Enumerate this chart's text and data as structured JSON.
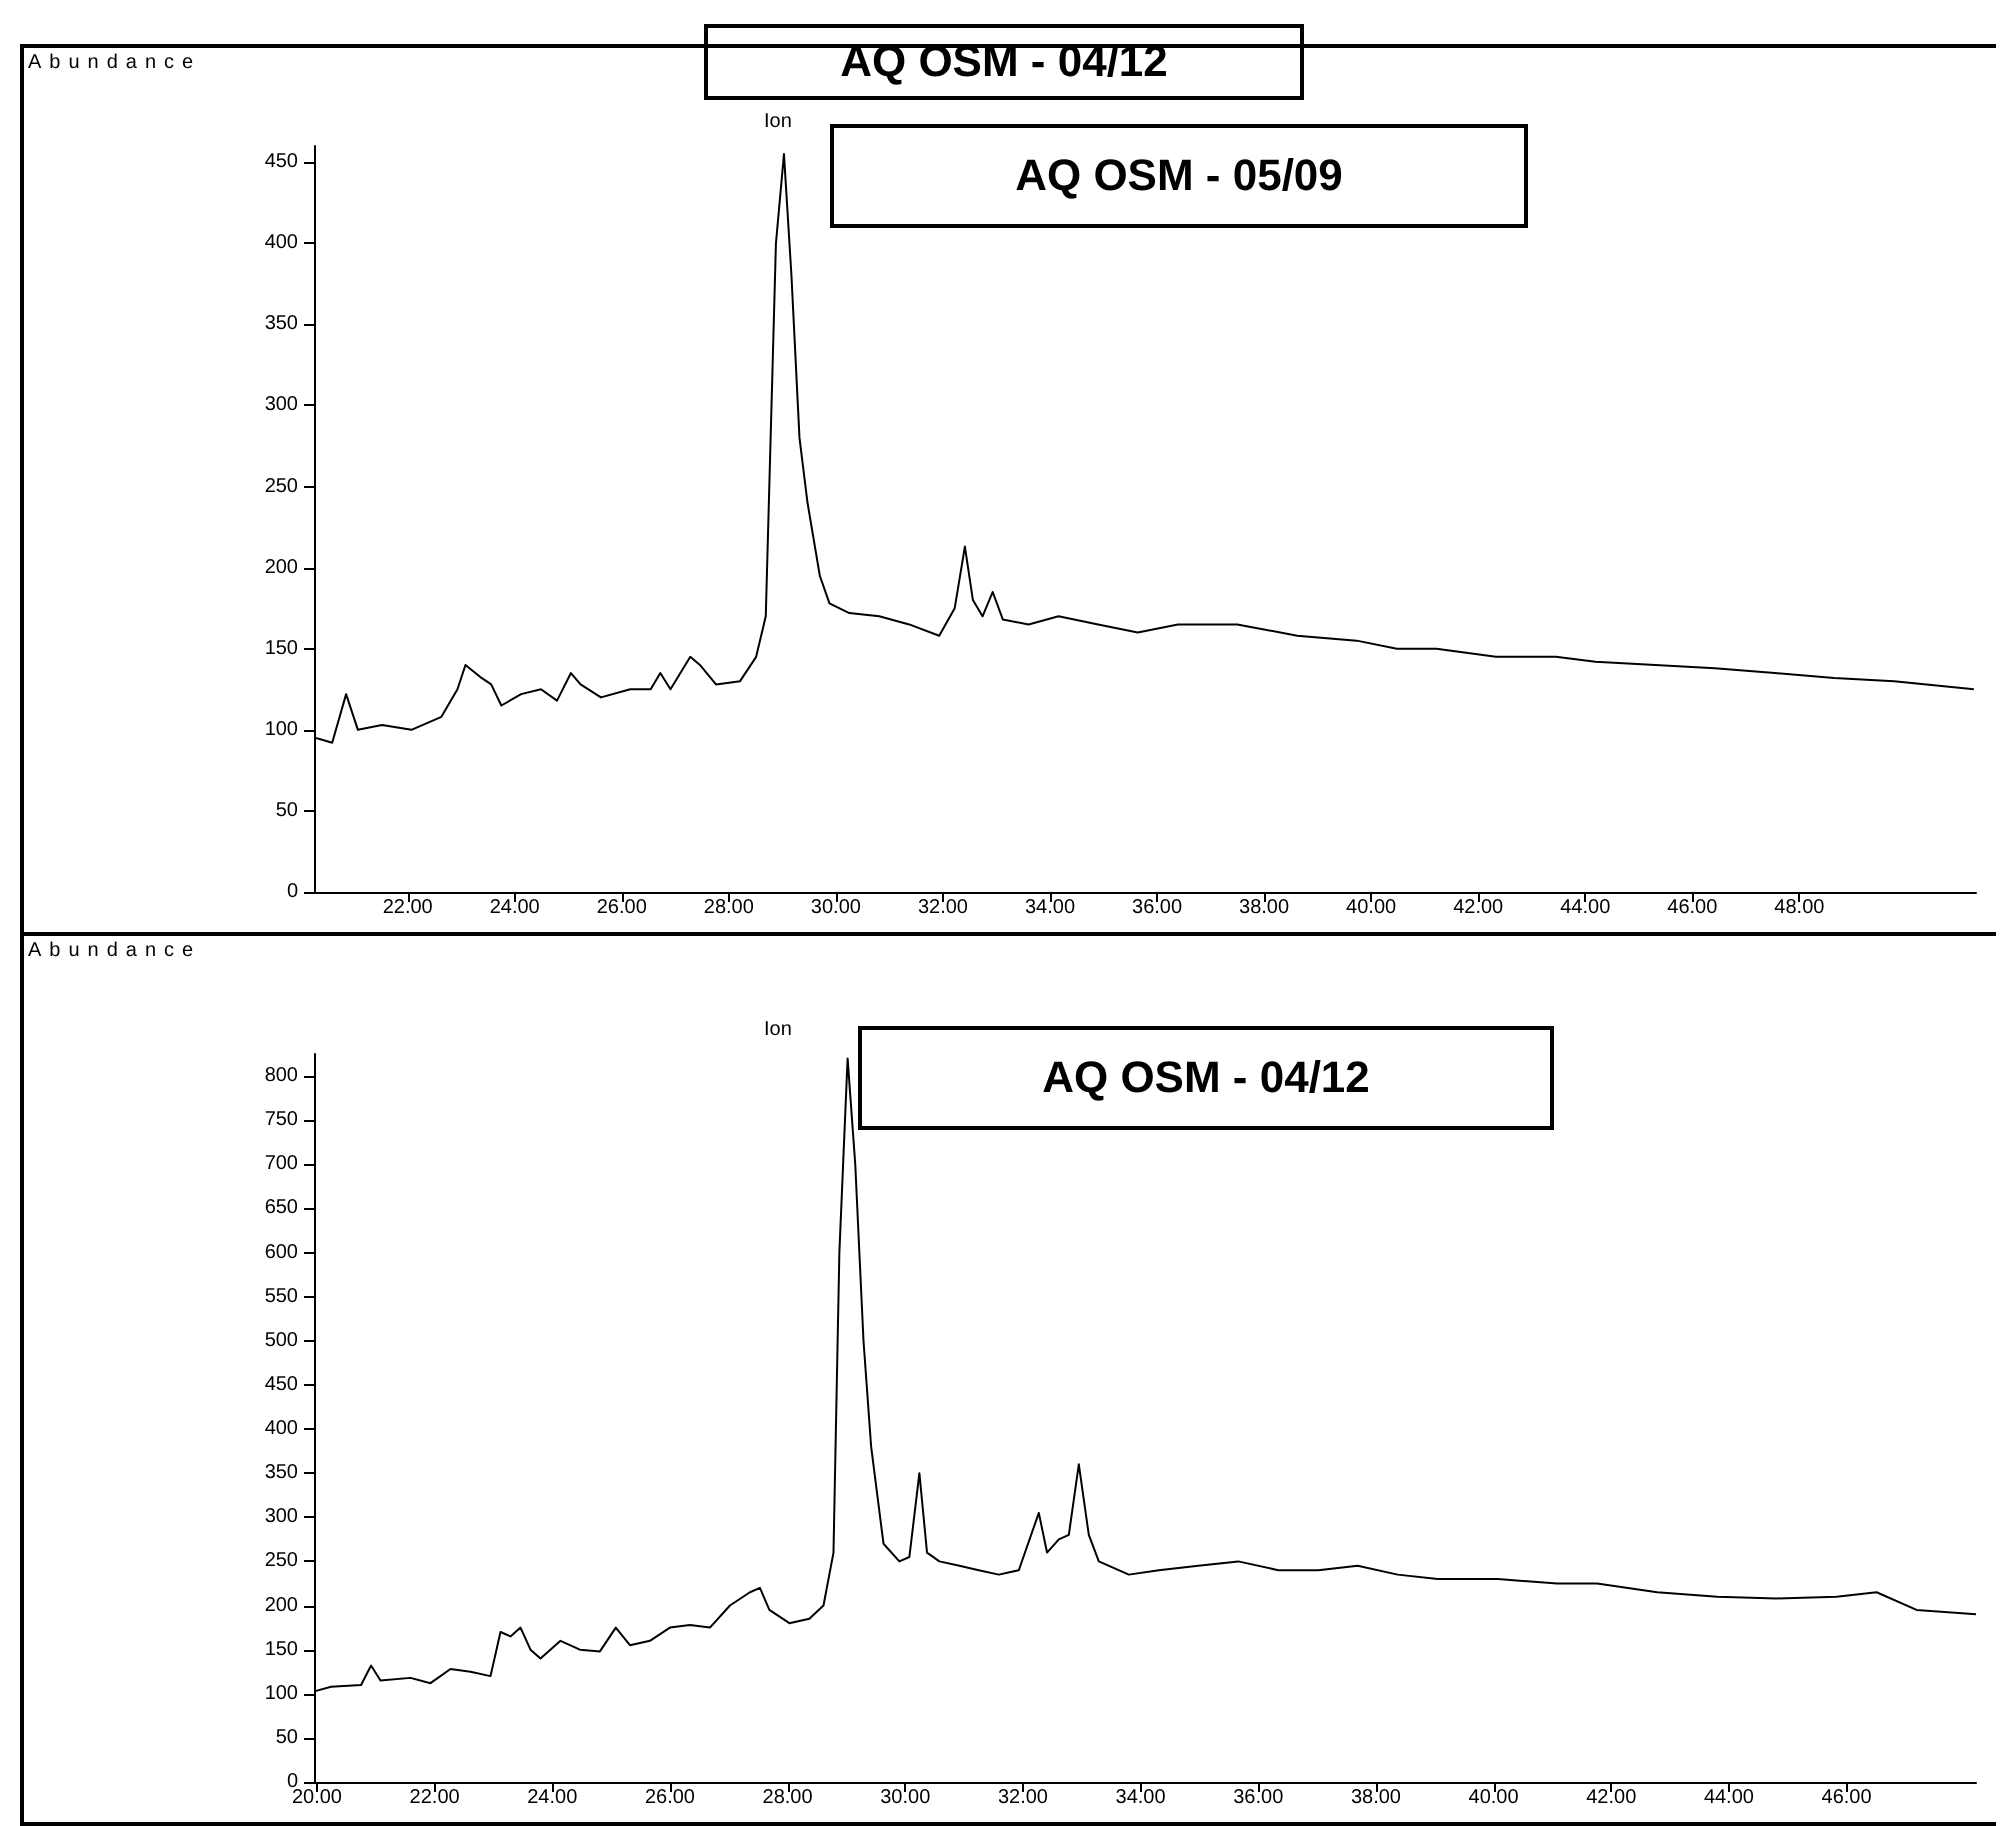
{
  "chart_data": [
    {
      "type": "line",
      "title": "Ion",
      "ylabel": "Abundance",
      "annotations": [
        "AQ OSM - 04/12",
        "AQ OSM - 05/09"
      ],
      "x": [
        20.29,
        20.59,
        20.85,
        21.07,
        21.52,
        22.07,
        22.63,
        22.93,
        23.08,
        23.38,
        23.56,
        23.75,
        24.12,
        24.49,
        24.79,
        25.05,
        25.23,
        25.61,
        26.16,
        26.54,
        26.72,
        26.91,
        27.28,
        27.46,
        27.76,
        28.21,
        28.51,
        28.69,
        28.88,
        29.03,
        29.17,
        29.32,
        29.47,
        29.7,
        29.88,
        30.25,
        30.81,
        31.37,
        31.93,
        32.22,
        32.41,
        32.56,
        32.74,
        32.93,
        33.12,
        33.6,
        34.16,
        34.9,
        35.64,
        36.39,
        37.5,
        38.62,
        39.73,
        40.48,
        41.22,
        42.33,
        43.45,
        44.19,
        45.31,
        46.42,
        47.54,
        48.65,
        49.77,
        51.26
      ],
      "series": [
        {
          "color": "#000000",
          "values": [
            95,
            92,
            122,
            100,
            103,
            100,
            108,
            125,
            140,
            132,
            128,
            115,
            122,
            125,
            118,
            135,
            128,
            120,
            125,
            125,
            135,
            125,
            145,
            140,
            128,
            130,
            145,
            170,
            400,
            455,
            380,
            280,
            240,
            195,
            178,
            172,
            170,
            165,
            158,
            175,
            213,
            180,
            170,
            185,
            168,
            165,
            170,
            165,
            160,
            165,
            165,
            158,
            155,
            150,
            150,
            145,
            145,
            142,
            140,
            138,
            135,
            132,
            130,
            125
          ]
        }
      ],
      "xlim": [
        20.25,
        51.3
      ],
      "xticks": [
        {
          "value": 22,
          "label": "22.00"
        },
        {
          "value": 24,
          "label": "24.00"
        },
        {
          "value": 26,
          "label": "26.00"
        },
        {
          "value": 28,
          "label": "28.00"
        },
        {
          "value": 30,
          "label": "30.00"
        },
        {
          "value": 32,
          "label": "32.00"
        },
        {
          "value": 34,
          "label": "34.00"
        },
        {
          "value": 36,
          "label": "36.00"
        },
        {
          "value": 38,
          "label": "38.00"
        },
        {
          "value": 40,
          "label": "40.00"
        },
        {
          "value": 42,
          "label": "42.00"
        },
        {
          "value": 44,
          "label": "44.00"
        },
        {
          "value": 46,
          "label": "46.00"
        },
        {
          "value": 48,
          "label": "48.00"
        }
      ],
      "ylim": [
        0,
        460
      ],
      "yticks": [
        0,
        50,
        100,
        150,
        200,
        250,
        300,
        350,
        400,
        450
      ],
      "grid": false,
      "marker": "none",
      "line_style": "solid"
    },
    {
      "type": "line",
      "title": "Ion",
      "ylabel": "Abundance",
      "annotations": [
        "AQ OSM - 04/12"
      ],
      "x": [
        19.97,
        20.24,
        20.75,
        20.92,
        21.08,
        21.59,
        21.93,
        22.27,
        22.61,
        22.95,
        23.12,
        23.29,
        23.46,
        23.63,
        23.8,
        24.14,
        24.47,
        24.81,
        25.08,
        25.32,
        25.66,
        26.0,
        26.34,
        26.68,
        27.02,
        27.36,
        27.53,
        27.69,
        28.03,
        28.37,
        28.61,
        28.78,
        28.88,
        29.02,
        29.15,
        29.29,
        29.42,
        29.63,
        29.9,
        30.07,
        30.24,
        30.37,
        30.58,
        30.92,
        31.25,
        31.59,
        31.93,
        32.27,
        32.41,
        32.61,
        32.78,
        32.95,
        33.12,
        33.29,
        33.8,
        34.31,
        34.98,
        35.66,
        36.34,
        37.02,
        37.69,
        38.37,
        39.05,
        40.07,
        41.08,
        41.76,
        42.78,
        43.8,
        44.81,
        45.83,
        46.51,
        47.19,
        48.2
      ],
      "series": [
        {
          "color": "#000000",
          "values": [
            103,
            108,
            110,
            132,
            115,
            118,
            112,
            128,
            125,
            120,
            170,
            165,
            175,
            150,
            140,
            160,
            150,
            148,
            175,
            155,
            160,
            175,
            178,
            175,
            200,
            215,
            220,
            195,
            180,
            185,
            200,
            260,
            600,
            820,
            700,
            500,
            380,
            270,
            250,
            255,
            350,
            260,
            250,
            245,
            240,
            235,
            240,
            305,
            260,
            275,
            280,
            360,
            280,
            250,
            235,
            240,
            245,
            250,
            240,
            240,
            245,
            235,
            230,
            230,
            225,
            225,
            215,
            210,
            208,
            210,
            215,
            195,
            190
          ]
        }
      ],
      "xlim": [
        19.95,
        48.2
      ],
      "xticks": [
        {
          "value": 20,
          "label": "20.00"
        },
        {
          "value": 22,
          "label": "22.00"
        },
        {
          "value": 24,
          "label": "24.00"
        },
        {
          "value": 26,
          "label": "26.00"
        },
        {
          "value": 28,
          "label": "28.00"
        },
        {
          "value": 30,
          "label": "30.00"
        },
        {
          "value": 32,
          "label": "32.00"
        },
        {
          "value": 34,
          "label": "34.00"
        },
        {
          "value": 36,
          "label": "36.00"
        },
        {
          "value": 38,
          "label": "38.00"
        },
        {
          "value": 40,
          "label": "40.00"
        },
        {
          "value": 42,
          "label": "42.00"
        },
        {
          "value": 44,
          "label": "44.00"
        },
        {
          "value": 46,
          "label": "46.00"
        }
      ],
      "ylim": [
        0,
        825
      ],
      "yticks": [
        0,
        50,
        100,
        150,
        200,
        250,
        300,
        350,
        400,
        450,
        500,
        550,
        600,
        650,
        700,
        750,
        800
      ],
      "grid": false,
      "marker": "none",
      "line_style": "solid"
    }
  ]
}
